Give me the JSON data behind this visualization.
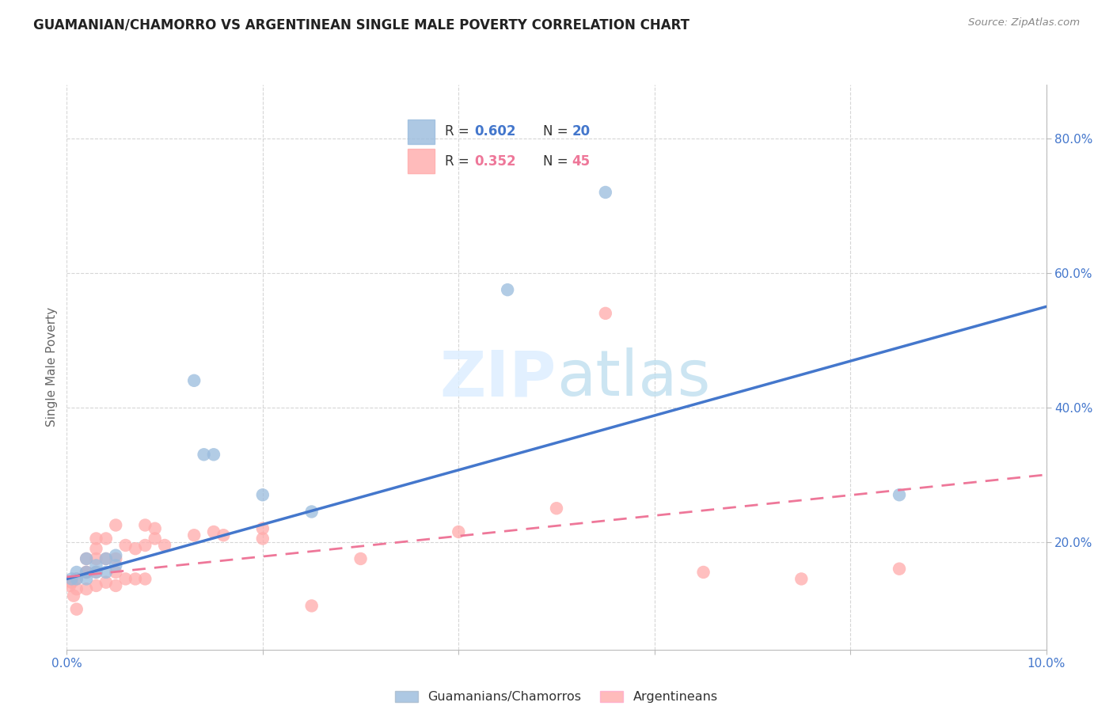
{
  "title": "GUAMANIAN/CHAMORRO VS ARGENTINEAN SINGLE MALE POVERTY CORRELATION CHART",
  "source": "Source: ZipAtlas.com",
  "ylabel": "Single Male Poverty",
  "legend_blue_r": "0.602",
  "legend_blue_n": "20",
  "legend_pink_r": "0.352",
  "legend_pink_n": "45",
  "legend_blue_label": "Guamanians/Chamorros",
  "legend_pink_label": "Argentineans",
  "ytick_labels": [
    "20.0%",
    "40.0%",
    "60.0%",
    "80.0%"
  ],
  "ytick_values": [
    0.2,
    0.4,
    0.6,
    0.8
  ],
  "xlim": [
    0.0,
    0.1
  ],
  "ylim": [
    0.04,
    0.88
  ],
  "blue_scatter_color": "#99BBDD",
  "pink_scatter_color": "#FFAAAA",
  "blue_line_color": "#4477CC",
  "pink_line_color": "#EE7799",
  "watermark_zip": "ZIP",
  "watermark_atlas": "atlas",
  "title_fontsize": 12,
  "tick_fontsize": 11,
  "blue_line_intercept": 0.145,
  "blue_line_slope": 4.05,
  "pink_line_intercept": 0.148,
  "pink_line_slope": 1.52,
  "guamanian_x": [
    0.0005,
    0.001,
    0.001,
    0.002,
    0.002,
    0.002,
    0.003,
    0.003,
    0.004,
    0.004,
    0.005,
    0.005,
    0.013,
    0.014,
    0.015,
    0.02,
    0.025,
    0.045,
    0.055,
    0.085
  ],
  "guamanian_y": [
    0.145,
    0.145,
    0.155,
    0.145,
    0.155,
    0.175,
    0.155,
    0.165,
    0.155,
    0.175,
    0.165,
    0.18,
    0.44,
    0.33,
    0.33,
    0.27,
    0.245,
    0.575,
    0.72,
    0.27
  ],
  "argentinean_x": [
    0.0003,
    0.0005,
    0.0007,
    0.001,
    0.001,
    0.001,
    0.002,
    0.002,
    0.002,
    0.002,
    0.003,
    0.003,
    0.003,
    0.003,
    0.003,
    0.004,
    0.004,
    0.004,
    0.005,
    0.005,
    0.005,
    0.005,
    0.006,
    0.006,
    0.007,
    0.007,
    0.008,
    0.008,
    0.008,
    0.009,
    0.009,
    0.01,
    0.013,
    0.015,
    0.016,
    0.02,
    0.02,
    0.025,
    0.03,
    0.04,
    0.05,
    0.055,
    0.065,
    0.075,
    0.085
  ],
  "argentinean_y": [
    0.135,
    0.14,
    0.12,
    0.145,
    0.1,
    0.13,
    0.155,
    0.13,
    0.155,
    0.175,
    0.135,
    0.155,
    0.175,
    0.19,
    0.205,
    0.14,
    0.175,
    0.205,
    0.135,
    0.155,
    0.175,
    0.225,
    0.145,
    0.195,
    0.145,
    0.19,
    0.145,
    0.195,
    0.225,
    0.205,
    0.22,
    0.195,
    0.21,
    0.215,
    0.21,
    0.205,
    0.22,
    0.105,
    0.175,
    0.215,
    0.25,
    0.54,
    0.155,
    0.145,
    0.16
  ]
}
